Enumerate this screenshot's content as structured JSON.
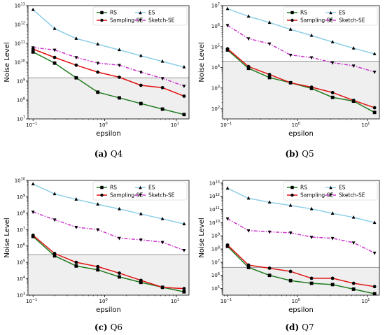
{
  "colors": {
    "RS": "#1e7a1e",
    "ES": "#8ecfe8",
    "Sampling-SE": "#e01010",
    "Sketch-SE": "#cc33cc",
    "shade": "#efefef",
    "threshold": "#999999"
  },
  "legend": [
    "RS",
    "ES",
    "Sampling-SE",
    "Sketch-SE"
  ],
  "chart_data": [
    {
      "id": "q4",
      "type": "line",
      "caption_label": "(a)",
      "caption_name": "Q4",
      "xlabel": "epsilon",
      "ylabel": "Noise Level",
      "xscale": "log",
      "yscale": "log",
      "xlim": [
        0.085,
        15
      ],
      "ylim_exp": [
        7,
        13
      ],
      "threshold": 1500000000.0,
      "legend_position": "top-right",
      "x": [
        0.1,
        0.2,
        0.4,
        0.8,
        1.6,
        3.2,
        6.4,
        12.8
      ],
      "series": [
        {
          "name": "RS",
          "marker": "square",
          "values": [
            35000000000.0,
            9000000000.0,
            1500000000.0,
            260000000.0,
            130000000.0,
            65000000.0,
            33000000.0,
            17000000.0
          ]
        },
        {
          "name": "ES",
          "marker": "triangle-up",
          "values": [
            6000000000000.0,
            600000000000.0,
            180000000000.0,
            90000000000.0,
            45000000000.0,
            22000000000.0,
            11000000000.0,
            5500000000.0
          ]
        },
        {
          "name": "Sampling-SE",
          "marker": "circle",
          "values": [
            50000000000.0,
            18000000000.0,
            7000000000.0,
            3000000000.0,
            1600000000.0,
            600000000.0,
            450000000.0,
            160000000.0
          ]
        },
        {
          "name": "Sketch-SE",
          "marker": "triangle-down",
          "values": [
            60000000000.0,
            45000000000.0,
            18000000000.0,
            9000000000.0,
            7000000000.0,
            3000000000.0,
            1400000000.0,
            550000000.0
          ]
        }
      ]
    },
    {
      "id": "q5",
      "type": "line",
      "caption_label": "(b)",
      "caption_name": "Q5",
      "xlabel": "epsilon",
      "ylabel": "Noise Level",
      "xscale": "log",
      "yscale": "log",
      "xlim": [
        0.085,
        15
      ],
      "ylim_exp": [
        1.5,
        7
      ],
      "threshold": 20000.0,
      "legend_position": "top-right",
      "x": [
        0.1,
        0.2,
        0.4,
        0.8,
        1.6,
        3.2,
        6.4,
        12.8
      ],
      "series": [
        {
          "name": "RS",
          "marker": "square",
          "values": [
            70000.0,
            9000.0,
            3200.0,
            1800.0,
            950,
            350,
            230,
            65
          ]
        },
        {
          "name": "ES",
          "marker": "triangle-up",
          "values": [
            7000000.0,
            3000000.0,
            1500000.0,
            700000.0,
            350000.0,
            170000.0,
            85000.0,
            45000.0
          ]
        },
        {
          "name": "Sampling-SE",
          "marker": "circle",
          "values": [
            80000.0,
            11000.0,
            4500.0,
            1800.0,
            1100.0,
            600,
            250,
            110
          ]
        },
        {
          "name": "Sketch-SE",
          "marker": "triangle-down",
          "values": [
            1100000.0,
            250000.0,
            140000.0,
            40000.0,
            30000.0,
            17000.0,
            12000.0,
            6000.0
          ]
        }
      ]
    },
    {
      "id": "q6",
      "type": "line",
      "caption_label": "(c)",
      "caption_name": "Q6",
      "xlabel": "epsilon",
      "ylabel": "Noise Level",
      "xscale": "log",
      "yscale": "log",
      "xlim": [
        0.085,
        15
      ],
      "ylim_exp": [
        3,
        10
      ],
      "threshold": 300000.0,
      "legend_position": "top-right",
      "x": [
        0.1,
        0.2,
        0.4,
        0.8,
        1.6,
        3.2,
        6.4,
        12.8
      ],
      "series": [
        {
          "name": "RS",
          "marker": "square",
          "values": [
            3800000.0,
            250000.0,
            60000.0,
            35000.0,
            13000.0,
            6000.0,
            3000.0,
            1600.0
          ]
        },
        {
          "name": "ES",
          "marker": "triangle-up",
          "values": [
            6000000000.0,
            1500000000.0,
            700000000.0,
            350000000.0,
            180000000.0,
            90000000.0,
            45000000.0,
            22000000.0
          ]
        },
        {
          "name": "Sampling-SE",
          "marker": "circle",
          "values": [
            4500000.0,
            350000.0,
            100000.0,
            55000.0,
            22000.0,
            8000.0,
            3000.0,
            2500.0
          ]
        },
        {
          "name": "Sketch-SE",
          "marker": "triangle-down",
          "values": [
            120000000.0,
            40000000.0,
            14000000.0,
            10000000.0,
            3000000.0,
            2400000.0,
            1700000.0,
            550000.0
          ]
        }
      ]
    },
    {
      "id": "q7",
      "type": "line",
      "caption_label": "(d)",
      "caption_name": "Q7",
      "xlabel": "epsilon",
      "ylabel": "Noise Level",
      "xscale": "log",
      "yscale": "log",
      "xlim": [
        0.085,
        15
      ],
      "ylim_exp": [
        4.5,
        13.2
      ],
      "threshold": 4000000.0,
      "legend_position": "top-right",
      "x": [
        0.1,
        0.2,
        0.4,
        0.8,
        1.6,
        3.2,
        6.4,
        12.8
      ],
      "series": [
        {
          "name": "RS",
          "marker": "square",
          "values": [
            160000000.0,
            4000000.0,
            1000000.0,
            400000.0,
            250000.0,
            200000.0,
            90000.0,
            40000.0
          ]
        },
        {
          "name": "ES",
          "marker": "triangle-up",
          "values": [
            4000000000000.0,
            700000000000.0,
            350000000000.0,
            200000000000.0,
            110000000000.0,
            50000000000.0,
            25000000000.0,
            10000000000.0
          ]
        },
        {
          "name": "Sampling-SE",
          "marker": "circle",
          "values": [
            200000000.0,
            6000000.0,
            3500000.0,
            2000000.0,
            600000.0,
            600000.0,
            250000.0,
            140000.0
          ]
        },
        {
          "name": "Sketch-SE",
          "marker": "triangle-down",
          "values": [
            20000000000.0,
            2500000000.0,
            2000000000.0,
            1700000000.0,
            800000000.0,
            650000000.0,
            300000000.0,
            50000000.0
          ]
        }
      ]
    }
  ]
}
